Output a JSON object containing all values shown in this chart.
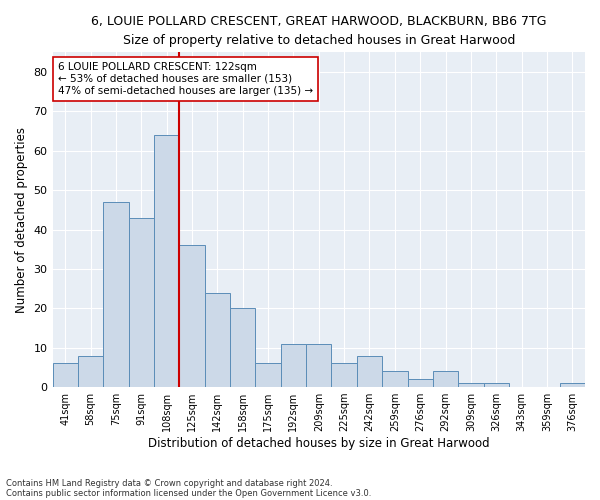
{
  "title1": "6, LOUIE POLLARD CRESCENT, GREAT HARWOOD, BLACKBURN, BB6 7TG",
  "title2": "Size of property relative to detached houses in Great Harwood",
  "xlabel": "Distribution of detached houses by size in Great Harwood",
  "ylabel": "Number of detached properties",
  "bar_labels": [
    "41sqm",
    "58sqm",
    "75sqm",
    "91sqm",
    "108sqm",
    "125sqm",
    "142sqm",
    "158sqm",
    "175sqm",
    "192sqm",
    "209sqm",
    "225sqm",
    "242sqm",
    "259sqm",
    "276sqm",
    "292sqm",
    "309sqm",
    "326sqm",
    "343sqm",
    "359sqm",
    "376sqm"
  ],
  "bar_values": [
    6,
    8,
    47,
    43,
    64,
    36,
    24,
    20,
    6,
    11,
    11,
    6,
    8,
    4,
    2,
    4,
    1,
    1,
    0,
    0,
    1
  ],
  "bar_color": "#ccd9e8",
  "bar_edge_color": "#5b8db8",
  "vline_color": "#cc0000",
  "annotation_text": "6 LOUIE POLLARD CRESCENT: 122sqm\n← 53% of detached houses are smaller (153)\n47% of semi-detached houses are larger (135) →",
  "annotation_box_color": "#ffffff",
  "annotation_box_edge": "#cc0000",
  "footnote1": "Contains HM Land Registry data © Crown copyright and database right 2024.",
  "footnote2": "Contains public sector information licensed under the Open Government Licence v3.0.",
  "ylim": [
    0,
    85
  ],
  "yticks": [
    0,
    10,
    20,
    30,
    40,
    50,
    60,
    70,
    80
  ],
  "plot_background": "#e8eef5"
}
